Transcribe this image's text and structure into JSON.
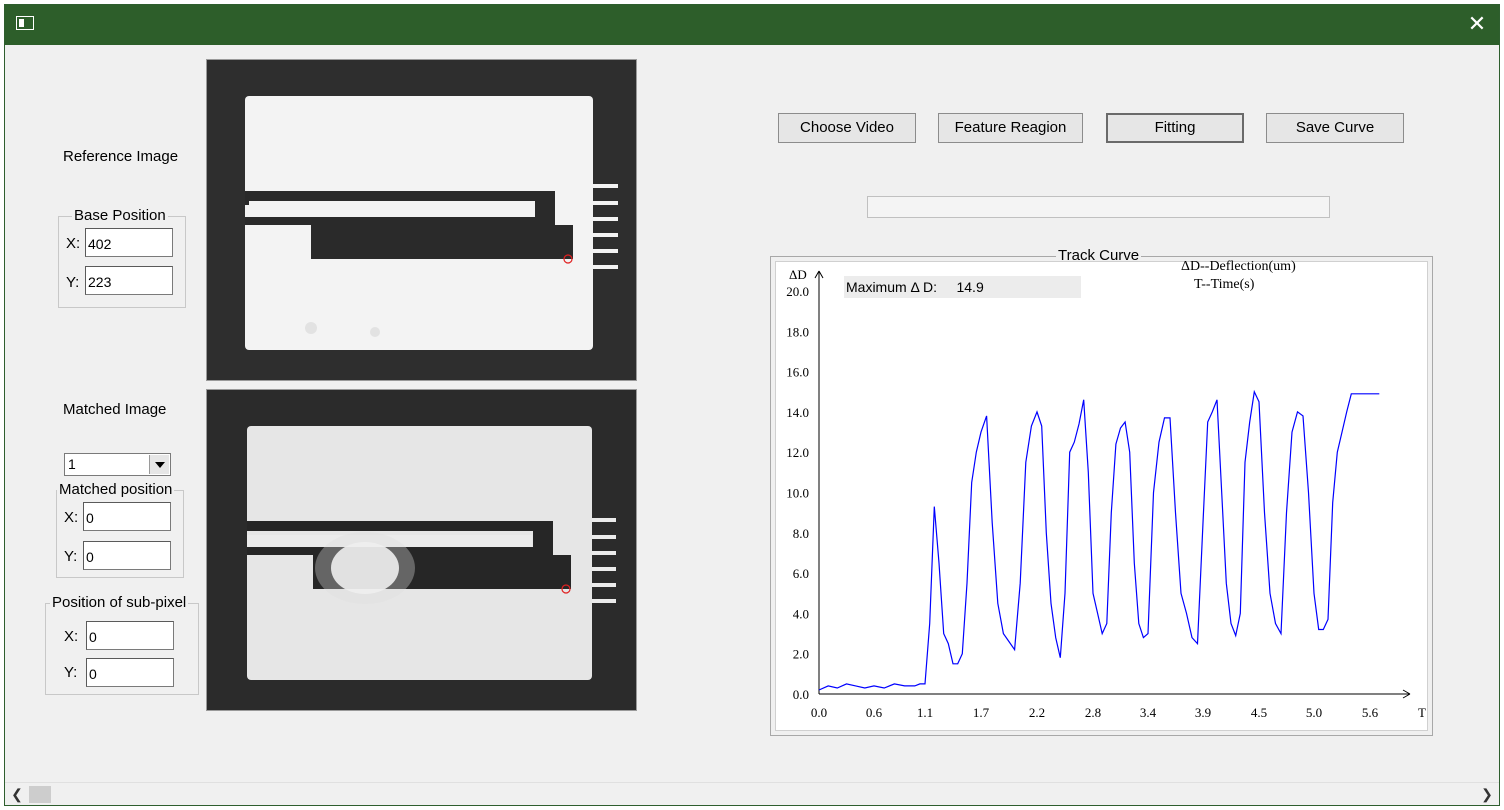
{
  "window": {
    "close_symbol": "✕"
  },
  "left": {
    "reference_label": "Reference Image",
    "base_position": {
      "title": "Base Position",
      "x_label": "X:",
      "x_value": "402",
      "y_label": "Y:",
      "y_value": "223"
    },
    "matched_label": "Matched Image",
    "frame_select": {
      "value": "1"
    },
    "matched_position": {
      "title": "Matched position",
      "x_label": "X:",
      "x_value": "0",
      "y_label": "Y:",
      "y_value": "0"
    },
    "subpixel_position": {
      "title": "Position of sub-pixel",
      "x_label": "X:",
      "x_value": "0",
      "y_label": "Y:",
      "y_value": "0"
    }
  },
  "toolbar": {
    "choose_video": "Choose Video",
    "feature_region": "Feature Reagion",
    "fitting": "Fitting",
    "save_curve": "Save Curve"
  },
  "progress": {
    "value": 0
  },
  "track_curve": {
    "title": "Track Curve",
    "max_label": "Maximum  Δ D:",
    "max_value": "14.9",
    "legend_line1": "ΔD--Deflection(um)",
    "legend_line2": "T--Time(s)"
  },
  "chart_data": {
    "type": "line",
    "title": "Track Curve",
    "xlabel": "T",
    "ylabel": "ΔD",
    "xlim": [
      0,
      6.1
    ],
    "ylim": [
      0,
      20
    ],
    "x_ticks": [
      "0.0",
      "0.6",
      "1.1",
      "1.7",
      "2.2",
      "2.8",
      "3.4",
      "3.9",
      "4.5",
      "5.0",
      "5.6"
    ],
    "y_ticks": [
      "0.0",
      "2.0",
      "4.0",
      "6.0",
      "8.0",
      "10.0",
      "12.0",
      "14.0",
      "16.0",
      "18.0",
      "20.0"
    ],
    "grid": false,
    "series": [
      {
        "color": "#0000ff",
        "x": [
          0.0,
          0.1,
          0.2,
          0.3,
          0.4,
          0.5,
          0.6,
          0.7,
          0.8,
          0.9,
          1.0,
          1.05,
          1.1,
          1.15,
          1.2,
          1.25,
          1.3,
          1.35,
          1.4,
          1.45,
          1.5,
          1.55,
          1.6,
          1.65,
          1.7,
          1.75,
          1.8,
          1.85,
          1.9,
          1.95,
          2.0,
          2.05,
          2.1,
          2.15,
          2.2,
          2.25,
          2.3,
          2.35,
          2.4,
          2.45,
          2.5,
          2.55,
          2.6,
          2.65,
          2.7,
          2.75,
          2.8,
          2.85,
          2.9,
          2.95,
          3.0,
          3.05,
          3.1,
          3.15,
          3.2,
          3.25,
          3.3,
          3.35,
          3.4,
          3.45,
          3.5,
          3.55,
          3.6,
          3.65,
          3.7,
          3.75,
          3.8,
          3.85,
          3.9,
          3.95,
          4.0,
          4.05,
          4.1,
          4.15,
          4.2,
          4.25,
          4.3,
          4.35,
          4.4,
          4.45,
          4.5,
          4.55,
          4.6,
          4.65,
          4.7,
          4.75,
          4.8,
          4.85,
          4.9,
          4.95,
          5.0,
          5.05,
          5.1,
          5.15,
          5.2,
          5.25,
          5.3,
          5.35,
          5.4,
          5.45,
          5.5,
          5.55,
          5.6,
          5.65,
          5.7
        ],
        "y": [
          0.2,
          0.4,
          0.3,
          0.5,
          0.4,
          0.3,
          0.4,
          0.3,
          0.5,
          0.4,
          0.4,
          0.5,
          0.5,
          3.5,
          9.3,
          6.5,
          3.0,
          2.5,
          1.5,
          1.5,
          2.0,
          5.5,
          10.5,
          12.0,
          13.0,
          13.8,
          8.5,
          4.5,
          3.0,
          2.6,
          2.2,
          5.5,
          11.5,
          13.3,
          14.0,
          13.3,
          8.0,
          4.5,
          2.8,
          1.8,
          5.0,
          12.0,
          12.5,
          13.4,
          14.6,
          11.0,
          5.0,
          4.0,
          3.0,
          3.5,
          9.0,
          12.4,
          13.2,
          13.5,
          12.0,
          6.5,
          3.5,
          2.8,
          3.0,
          10.0,
          12.5,
          13.7,
          13.7,
          9.0,
          5.0,
          4.0,
          2.8,
          2.5,
          8.5,
          13.5,
          14.0,
          14.6,
          10.0,
          5.5,
          3.5,
          2.9,
          4.0,
          11.5,
          13.5,
          15.0,
          14.5,
          9.0,
          5.0,
          3.5,
          3.0,
          9.0,
          13.0,
          14.0,
          13.8,
          10.0,
          5.0,
          3.2,
          3.2,
          3.7,
          9.5,
          12.0,
          13.0,
          14.0,
          14.9,
          14.9,
          14.9,
          14.9,
          14.9,
          14.9,
          14.9
        ]
      }
    ]
  }
}
